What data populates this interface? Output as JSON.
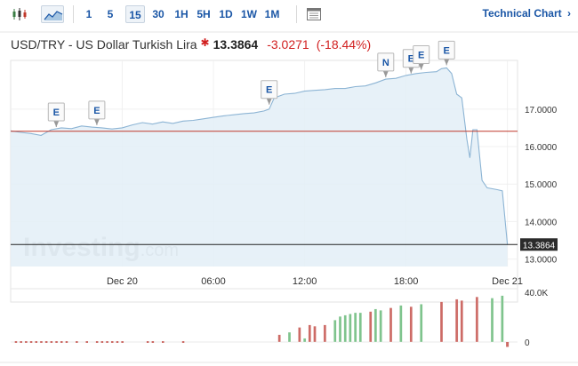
{
  "toolbar": {
    "timeframes": [
      "1",
      "5",
      "15",
      "30",
      "1H",
      "5H",
      "1D",
      "1W",
      "1M"
    ],
    "active_timeframe": "15",
    "technical_chart_label": "Technical Chart",
    "technical_chart_arrow": "›"
  },
  "header": {
    "pair_name": "USD/TRY - US Dollar Turkish Lira",
    "price": "13.3864",
    "change": "-3.0271",
    "change_pct": "(-18.44%)",
    "change_color": "#d11f1f"
  },
  "watermark": {
    "main": "Investing",
    "suffix": ".com"
  },
  "chart_data": {
    "type": "area",
    "x_tick_labels": [
      "Dec 20",
      "06:00",
      "12:00",
      "18:00",
      "Dec 21"
    ],
    "y_tick_labels": [
      "17.0000",
      "16.0000",
      "15.0000",
      "14.0000",
      "13.0000"
    ],
    "ylim": [
      12.8,
      18.3
    ],
    "xlim": [
      0,
      100
    ],
    "grid": true,
    "last_price": 13.3864,
    "last_price_label": "13.3864",
    "reference_line": 16.41,
    "line_color": "#8cb4d4",
    "fill_color": "#e3eef7",
    "reference_color": "#c0392b",
    "series": [
      {
        "values": [
          [
            0,
            16.42
          ],
          [
            2,
            16.38
          ],
          [
            4,
            16.35
          ],
          [
            6,
            16.3
          ],
          [
            8,
            16.45
          ],
          [
            10,
            16.5
          ],
          [
            12,
            16.48
          ],
          [
            14,
            16.55
          ],
          [
            16,
            16.52
          ],
          [
            18,
            16.5
          ],
          [
            20,
            16.47
          ],
          [
            22,
            16.5
          ],
          [
            24,
            16.58
          ],
          [
            26,
            16.64
          ],
          [
            28,
            16.6
          ],
          [
            30,
            16.66
          ],
          [
            32,
            16.62
          ],
          [
            34,
            16.68
          ],
          [
            36,
            16.7
          ],
          [
            38,
            16.74
          ],
          [
            40,
            16.78
          ],
          [
            42,
            16.82
          ],
          [
            44,
            16.85
          ],
          [
            46,
            16.88
          ],
          [
            48,
            16.9
          ],
          [
            50,
            16.95
          ],
          [
            51,
            17.0
          ],
          [
            52,
            17.3
          ],
          [
            54,
            17.4
          ],
          [
            56,
            17.42
          ],
          [
            58,
            17.48
          ],
          [
            60,
            17.5
          ],
          [
            62,
            17.52
          ],
          [
            64,
            17.55
          ],
          [
            66,
            17.55
          ],
          [
            68,
            17.6
          ],
          [
            70,
            17.62
          ],
          [
            72,
            17.7
          ],
          [
            74,
            17.8
          ],
          [
            76,
            17.82
          ],
          [
            78,
            17.9
          ],
          [
            80,
            17.95
          ],
          [
            82,
            17.98
          ],
          [
            84,
            18.0
          ],
          [
            85,
            18.08
          ],
          [
            86,
            18.1
          ],
          [
            87,
            17.95
          ],
          [
            88,
            17.4
          ],
          [
            89,
            17.3
          ],
          [
            90,
            16.2
          ],
          [
            90.6,
            15.7
          ],
          [
            91.2,
            16.45
          ],
          [
            92,
            16.45
          ],
          [
            93,
            15.1
          ],
          [
            94,
            14.9
          ],
          [
            96,
            14.85
          ],
          [
            97,
            14.82
          ],
          [
            98,
            13.39
          ]
        ]
      }
    ],
    "event_markers": [
      {
        "label": "E",
        "x": 9,
        "y": 16.45
      },
      {
        "label": "E",
        "x": 17,
        "y": 16.5
      },
      {
        "label": "E",
        "x": 51,
        "y": 17.05
      },
      {
        "label": "N",
        "x": 74,
        "y": 17.78
      },
      {
        "label": "E",
        "x": 79,
        "y": 17.88
      },
      {
        "label": "E",
        "x": 81,
        "y": 17.98
      },
      {
        "label": "E",
        "x": 86,
        "y": 18.1
      }
    ],
    "volume": {
      "y_tick_labels": [
        "40.0K",
        "0"
      ],
      "ylim": [
        0,
        40000
      ],
      "up_color": "#7fc48d",
      "down_color": "#cd6b66",
      "flat_color": "#cd6b66",
      "bars": [
        [
          1,
          0,
          0
        ],
        [
          2,
          0,
          0
        ],
        [
          3,
          0,
          0
        ],
        [
          4,
          0,
          0
        ],
        [
          5,
          0,
          0
        ],
        [
          6,
          0,
          0
        ],
        [
          7,
          0,
          0
        ],
        [
          8,
          0,
          0
        ],
        [
          9,
          0,
          0
        ],
        [
          10,
          0,
          0
        ],
        [
          11,
          0,
          0
        ],
        [
          13,
          0,
          0
        ],
        [
          15,
          0,
          0
        ],
        [
          17,
          0,
          0
        ],
        [
          18,
          0,
          0
        ],
        [
          19,
          0,
          0
        ],
        [
          20,
          0,
          0
        ],
        [
          21,
          0,
          0
        ],
        [
          22,
          0,
          0
        ],
        [
          27,
          0,
          0
        ],
        [
          28,
          0,
          0
        ],
        [
          30,
          0,
          0
        ],
        [
          34,
          0,
          0
        ],
        [
          53,
          6000,
          -1
        ],
        [
          55,
          8000,
          1
        ],
        [
          57,
          12000,
          -1
        ],
        [
          58,
          3000,
          1
        ],
        [
          59,
          14000,
          -1
        ],
        [
          60,
          13000,
          -1
        ],
        [
          62,
          14000,
          -1
        ],
        [
          64,
          18000,
          1
        ],
        [
          65,
          21000,
          1
        ],
        [
          66,
          22000,
          1
        ],
        [
          67,
          23000,
          1
        ],
        [
          68,
          24000,
          1
        ],
        [
          69,
          24000,
          1
        ],
        [
          71,
          25000,
          -1
        ],
        [
          72,
          27000,
          1
        ],
        [
          73,
          26000,
          1
        ],
        [
          75,
          28000,
          -1
        ],
        [
          77,
          30000,
          1
        ],
        [
          79,
          29000,
          -1
        ],
        [
          81,
          31000,
          1
        ],
        [
          85,
          33000,
          -1
        ],
        [
          88,
          35000,
          -1
        ],
        [
          89,
          34000,
          -1
        ],
        [
          92,
          37000,
          -1
        ],
        [
          95,
          36000,
          1
        ],
        [
          97,
          38000,
          1
        ],
        [
          98,
          -4000,
          -1
        ]
      ]
    }
  }
}
